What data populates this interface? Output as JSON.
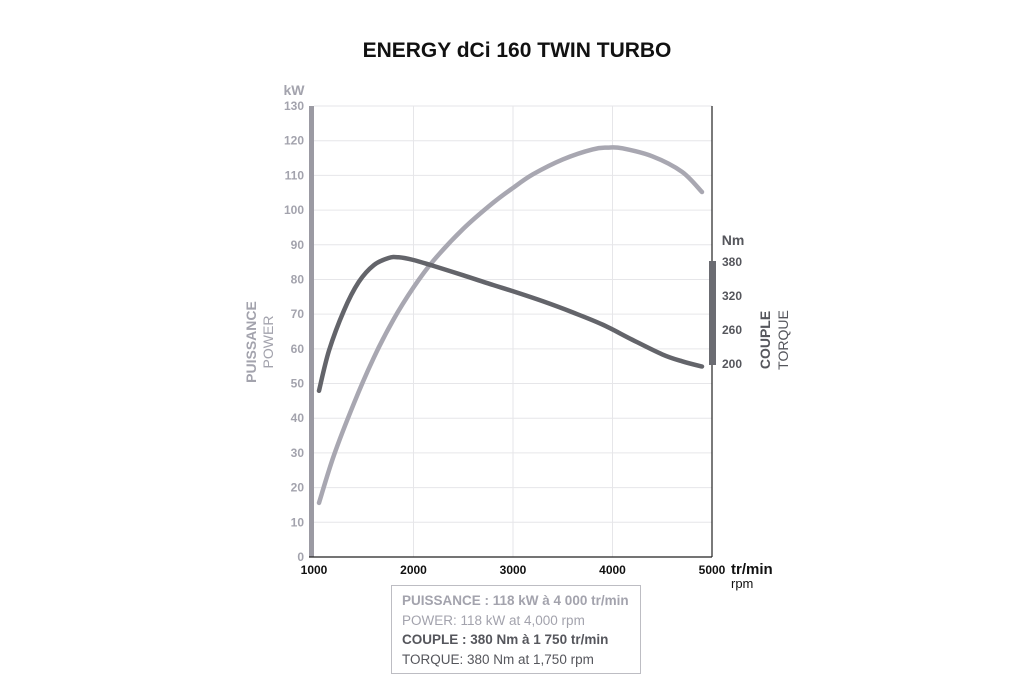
{
  "chart_data": {
    "type": "line",
    "title": "ENERGY dCi 160 TWIN TURBO",
    "x": {
      "label": "tr/min",
      "label_sub": "rpm",
      "range": [
        1000,
        5000
      ],
      "ticks": [
        1000,
        2000,
        3000,
        4000,
        5000
      ]
    },
    "y_left": {
      "unit": "kW",
      "label": "PUISSANCE",
      "label_sub": "POWER",
      "range": [
        0,
        130
      ],
      "ticks": [
        0,
        10,
        20,
        30,
        40,
        50,
        60,
        70,
        80,
        90,
        100,
        110,
        120,
        130
      ]
    },
    "y_right": {
      "unit": "Nm",
      "label": "COUPLE",
      "label_sub": "TORQUE",
      "range": [
        200,
        380
      ],
      "ticks": [
        200,
        260,
        320,
        380
      ]
    },
    "series": [
      {
        "name": "PUISSANCE / POWER",
        "color": "#a8a7b1",
        "axis": "left",
        "points": [
          [
            1050,
            15.6
          ],
          [
            1200,
            29.3
          ],
          [
            1400,
            44.2
          ],
          [
            1600,
            57.4
          ],
          [
            1800,
            68.5
          ],
          [
            2000,
            77.7
          ],
          [
            2200,
            85.4
          ],
          [
            2500,
            94.6
          ],
          [
            2800,
            102.1
          ],
          [
            3000,
            106.4
          ],
          [
            3200,
            110.3
          ],
          [
            3500,
            114.6
          ],
          [
            3800,
            117.5
          ],
          [
            3950,
            118.0
          ],
          [
            4100,
            117.8
          ],
          [
            4400,
            115.5
          ],
          [
            4700,
            111.0
          ],
          [
            4900,
            105.2
          ]
        ]
      },
      {
        "name": "COUPLE / TORQUE",
        "color": "#63646a",
        "axis": "left",
        "points": [
          [
            1050,
            47.9
          ],
          [
            1150,
            59.4
          ],
          [
            1300,
            71.0
          ],
          [
            1450,
            79.3
          ],
          [
            1600,
            84.1
          ],
          [
            1750,
            86.2
          ],
          [
            1850,
            86.4
          ],
          [
            2000,
            85.6
          ],
          [
            2200,
            83.9
          ],
          [
            2500,
            81.2
          ],
          [
            2800,
            78.4
          ],
          [
            3000,
            76.6
          ],
          [
            3300,
            73.7
          ],
          [
            3600,
            70.5
          ],
          [
            3900,
            67.0
          ],
          [
            4200,
            62.6
          ],
          [
            4500,
            58.4
          ],
          [
            4700,
            56.4
          ],
          [
            4900,
            54.9
          ]
        ]
      }
    ]
  },
  "legend": {
    "line1": "PUISSANCE : 118 kW à 4 000 tr/min",
    "line2": "POWER: 118 kW at 4,000 rpm",
    "line3": "COUPLE : 380 Nm à 1 750 tr/min",
    "line4": "TORQUE: 380 Nm at 1,750 rpm"
  },
  "colors": {
    "power": "#a8a7b1",
    "torque": "#63646a",
    "axis_left": "#9b9aa3",
    "axis_right": "#6b6c72"
  }
}
